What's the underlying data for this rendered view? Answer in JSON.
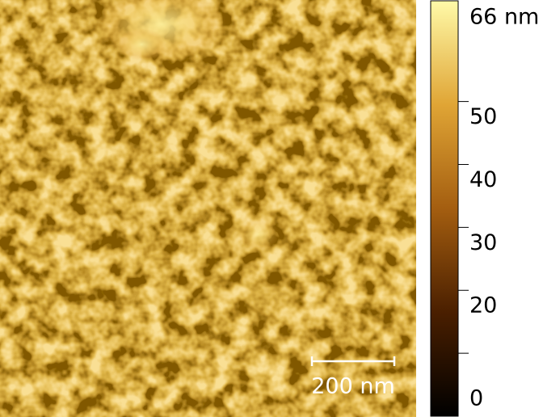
{
  "scale_bar": {
    "label": "200 nm"
  },
  "colorbar": {
    "range": [
      0,
      66
    ],
    "ticks": [
      0,
      20,
      30,
      40,
      50,
      {
        "value": 66,
        "label": "66 nm"
      }
    ],
    "minor_ticks": [
      10,
      20,
      30,
      40,
      50
    ]
  }
}
